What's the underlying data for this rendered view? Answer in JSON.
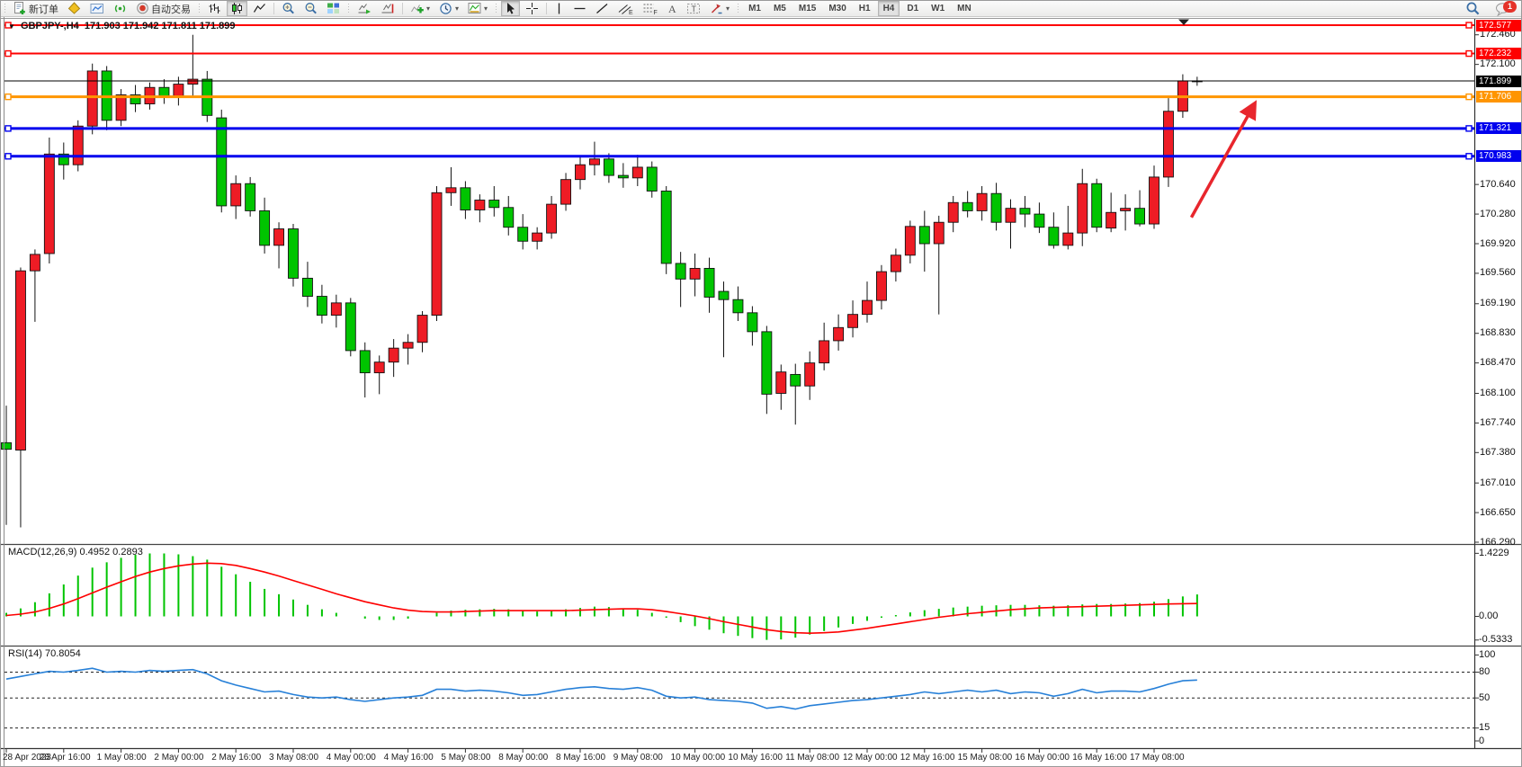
{
  "toolbar": {
    "new_order_label": "新订单",
    "autotrade_label": "自动交易",
    "timeframes": [
      "M1",
      "M5",
      "M15",
      "M30",
      "H1",
      "H4",
      "D1",
      "W1",
      "MN"
    ],
    "active_timeframe": "H4",
    "notification_badge": "1"
  },
  "chart": {
    "symbol_period": "GBPJPY-,H4",
    "ohlc_text": "171.903 171.942 171.811 171.899"
  },
  "price_axis": {
    "ticks": [
      "172.460",
      "172.100",
      "170.640",
      "170.280",
      "169.920",
      "169.560",
      "169.190",
      "168.830",
      "168.470",
      "168.100",
      "167.740",
      "167.380",
      "167.010",
      "166.650",
      "166.290"
    ],
    "badges": [
      {
        "value": "172.577",
        "bg": "#FE0000"
      },
      {
        "value": "172.232",
        "bg": "#FE0000"
      },
      {
        "value": "171.899",
        "bg": "#000000"
      },
      {
        "value": "171.706",
        "bg": "#FF9500"
      },
      {
        "value": "171.321",
        "bg": "#0000EE"
      },
      {
        "value": "170.983",
        "bg": "#0000EE"
      }
    ]
  },
  "time_axis": {
    "labels": [
      "28 Apr 2023",
      "28 Apr 16:00",
      "1 May 08:00",
      "2 May 00:00",
      "2 May 16:00",
      "3 May 08:00",
      "4 May 00:00",
      "4 May 16:00",
      "5 May 08:00",
      "8 May 00:00",
      "8 May 16:00",
      "9 May 08:00",
      "10 May 00:00",
      "10 May 16:00",
      "11 May 08:00",
      "12 May 00:00",
      "12 May 16:00",
      "15 May 08:00",
      "16 May 00:00",
      "16 May 16:00",
      "17 May 08:00"
    ]
  },
  "macd_panel": {
    "label": "MACD(12,26,9) 0.4952 0.2893",
    "scale": [
      "1.4229",
      "0.00",
      "-0.5333"
    ]
  },
  "rsi_panel": {
    "label": "RSI(14) 70.8054",
    "scale": [
      "100",
      "80",
      "50",
      "15",
      "0"
    ]
  },
  "chart_data": [
    {
      "type": "candlestick",
      "title": "GBPJPY-,H4",
      "timeframe": "H4",
      "up_color": "#EE1C25",
      "down_color": "#00C400",
      "ylim": [
        166.29,
        172.69
      ],
      "candles": [
        [
          167.5,
          167.95,
          166.5,
          167.42
        ],
        [
          167.41,
          169.63,
          166.47,
          169.59
        ],
        [
          169.59,
          169.85,
          168.97,
          169.79
        ],
        [
          169.8,
          171.21,
          169.68,
          171.01
        ],
        [
          171.01,
          171.15,
          170.7,
          170.88
        ],
        [
          170.88,
          171.42,
          170.8,
          171.35
        ],
        [
          171.35,
          172.11,
          171.25,
          172.02
        ],
        [
          172.02,
          172.08,
          171.3,
          171.42
        ],
        [
          171.42,
          171.8,
          171.35,
          171.73
        ],
        [
          171.73,
          171.85,
          171.52,
          171.62
        ],
        [
          171.62,
          171.88,
          171.55,
          171.82
        ],
        [
          171.82,
          171.92,
          171.62,
          171.7
        ],
        [
          171.7,
          171.95,
          171.6,
          171.86
        ],
        [
          171.86,
          172.46,
          171.72,
          171.92
        ],
        [
          171.92,
          172.02,
          171.4,
          171.48
        ],
        [
          171.45,
          171.55,
          170.3,
          170.38
        ],
        [
          170.38,
          170.75,
          170.22,
          170.65
        ],
        [
          170.65,
          170.73,
          170.25,
          170.32
        ],
        [
          170.32,
          170.48,
          169.8,
          169.9
        ],
        [
          169.9,
          170.18,
          169.62,
          170.1
        ],
        [
          170.1,
          170.16,
          169.4,
          169.5
        ],
        [
          169.5,
          169.7,
          169.15,
          169.28
        ],
        [
          169.28,
          169.42,
          168.95,
          169.05
        ],
        [
          169.05,
          169.3,
          168.9,
          169.2
        ],
        [
          169.2,
          169.26,
          168.55,
          168.62
        ],
        [
          168.62,
          168.72,
          168.05,
          168.35
        ],
        [
          168.35,
          168.56,
          168.09,
          168.48
        ],
        [
          168.48,
          168.76,
          168.3,
          168.65
        ],
        [
          168.65,
          168.82,
          168.45,
          168.72
        ],
        [
          168.72,
          169.1,
          168.6,
          169.05
        ],
        [
          169.05,
          170.62,
          168.98,
          170.54
        ],
        [
          170.54,
          170.85,
          170.38,
          170.6
        ],
        [
          170.6,
          170.68,
          170.22,
          170.33
        ],
        [
          170.33,
          170.52,
          170.18,
          170.45
        ],
        [
          170.45,
          170.62,
          170.25,
          170.36
        ],
        [
          170.36,
          170.5,
          170.02,
          170.12
        ],
        [
          170.12,
          170.28,
          169.85,
          169.95
        ],
        [
          169.95,
          170.12,
          169.85,
          170.05
        ],
        [
          170.05,
          170.5,
          169.98,
          170.4
        ],
        [
          170.4,
          170.78,
          170.32,
          170.7
        ],
        [
          170.7,
          170.98,
          170.58,
          170.88
        ],
        [
          170.88,
          171.16,
          170.75,
          170.95
        ],
        [
          170.95,
          171.02,
          170.66,
          170.75
        ],
        [
          170.75,
          170.9,
          170.6,
          170.72
        ],
        [
          170.72,
          171.0,
          170.62,
          170.85
        ],
        [
          170.85,
          170.92,
          170.48,
          170.56
        ],
        [
          170.56,
          170.62,
          169.55,
          169.68
        ],
        [
          169.68,
          169.82,
          169.15,
          169.49
        ],
        [
          169.49,
          169.8,
          169.28,
          169.62
        ],
        [
          169.62,
          169.75,
          169.08,
          169.27
        ],
        [
          169.34,
          169.46,
          168.54,
          169.24
        ],
        [
          169.24,
          169.4,
          168.98,
          169.08
        ],
        [
          169.08,
          169.16,
          168.68,
          168.85
        ],
        [
          168.85,
          168.92,
          167.85,
          168.09
        ],
        [
          168.1,
          168.45,
          167.9,
          168.36
        ],
        [
          168.33,
          168.46,
          167.72,
          168.19
        ],
        [
          168.19,
          168.61,
          168.02,
          168.47
        ],
        [
          168.47,
          168.96,
          168.38,
          168.74
        ],
        [
          168.74,
          169.06,
          168.62,
          168.9
        ],
        [
          168.9,
          169.23,
          168.78,
          169.06
        ],
        [
          169.06,
          169.46,
          168.96,
          169.23
        ],
        [
          169.23,
          169.66,
          169.12,
          169.58
        ],
        [
          169.58,
          169.86,
          169.46,
          169.78
        ],
        [
          169.78,
          170.2,
          169.68,
          170.13
        ],
        [
          170.13,
          170.32,
          169.58,
          169.92
        ],
        [
          169.92,
          170.26,
          169.06,
          170.18
        ],
        [
          170.18,
          170.5,
          170.06,
          170.42
        ],
        [
          170.42,
          170.56,
          170.24,
          170.32
        ],
        [
          170.32,
          170.62,
          170.2,
          170.53
        ],
        [
          170.53,
          170.66,
          170.08,
          170.18
        ],
        [
          170.18,
          170.46,
          169.86,
          170.35
        ],
        [
          170.35,
          170.5,
          170.12,
          170.28
        ],
        [
          170.28,
          170.42,
          170.05,
          170.12
        ],
        [
          170.12,
          170.3,
          169.86,
          169.9
        ],
        [
          169.9,
          170.38,
          169.85,
          170.05
        ],
        [
          170.05,
          170.83,
          169.89,
          170.65
        ],
        [
          170.65,
          170.71,
          170.06,
          170.12
        ],
        [
          170.11,
          170.54,
          170.06,
          170.3
        ],
        [
          170.32,
          170.52,
          170.08,
          170.35
        ],
        [
          170.35,
          170.57,
          170.13,
          170.16
        ],
        [
          170.16,
          170.87,
          170.1,
          170.73
        ],
        [
          170.73,
          171.69,
          170.61,
          171.53
        ],
        [
          171.53,
          171.98,
          171.45,
          171.9
        ],
        [
          171.9,
          171.95,
          171.84,
          171.9
        ]
      ],
      "hlines": [
        {
          "price": 172.577,
          "color": "#FE0000",
          "width": 2,
          "handles": true
        },
        {
          "price": 172.232,
          "color": "#FE0000",
          "width": 2,
          "handles": true
        },
        {
          "price": 171.899,
          "color": "#000000",
          "width": 1,
          "handles": false
        },
        {
          "price": 171.706,
          "color": "#FF9500",
          "width": 3,
          "handles": true
        },
        {
          "price": 171.321,
          "color": "#0000EE",
          "width": 3,
          "handles": true
        },
        {
          "price": 170.983,
          "color": "#0000EE",
          "width": 3,
          "handles": true
        }
      ],
      "current_price": 171.899,
      "trend_arrow": {
        "from_bar": 82.6,
        "from_price": 170.24,
        "to_bar": 87.0,
        "to_price": 171.62,
        "color": "#E8262D"
      }
    },
    {
      "type": "bar",
      "name": "MACD",
      "params": "12,26,9",
      "current_values": [
        0.4952,
        0.2893
      ],
      "ylim": [
        -0.5333,
        1.4229
      ],
      "bar_color": "#00C400",
      "signal_color": "#FE0000",
      "values": [
        0.08,
        0.18,
        0.32,
        0.52,
        0.72,
        0.92,
        1.1,
        1.22,
        1.32,
        1.39,
        1.42,
        1.42,
        1.4,
        1.36,
        1.28,
        1.12,
        0.95,
        0.78,
        0.62,
        0.5,
        0.38,
        0.26,
        0.16,
        0.08,
        0.0,
        -0.05,
        -0.08,
        -0.08,
        -0.05,
        0.0,
        0.08,
        0.13,
        0.15,
        0.16,
        0.17,
        0.16,
        0.13,
        0.11,
        0.13,
        0.16,
        0.19,
        0.22,
        0.21,
        0.18,
        0.15,
        0.08,
        -0.03,
        -0.13,
        -0.22,
        -0.3,
        -0.38,
        -0.44,
        -0.49,
        -0.53,
        -0.52,
        -0.48,
        -0.41,
        -0.33,
        -0.25,
        -0.17,
        -0.1,
        -0.03,
        0.03,
        0.09,
        0.14,
        0.17,
        0.2,
        0.22,
        0.24,
        0.25,
        0.26,
        0.26,
        0.25,
        0.24,
        0.25,
        0.27,
        0.28,
        0.28,
        0.29,
        0.3,
        0.33,
        0.39,
        0.45,
        0.4952
      ],
      "signal": [
        0.02,
        0.05,
        0.1,
        0.18,
        0.28,
        0.4,
        0.53,
        0.66,
        0.78,
        0.9,
        1.0,
        1.08,
        1.14,
        1.18,
        1.2,
        1.19,
        1.15,
        1.08,
        1.0,
        0.91,
        0.81,
        0.71,
        0.61,
        0.51,
        0.42,
        0.33,
        0.26,
        0.19,
        0.14,
        0.11,
        0.1,
        0.1,
        0.11,
        0.12,
        0.13,
        0.13,
        0.13,
        0.13,
        0.13,
        0.13,
        0.14,
        0.15,
        0.16,
        0.17,
        0.17,
        0.15,
        0.11,
        0.06,
        0.01,
        -0.05,
        -0.12,
        -0.18,
        -0.24,
        -0.3,
        -0.34,
        -0.37,
        -0.38,
        -0.37,
        -0.35,
        -0.31,
        -0.27,
        -0.22,
        -0.17,
        -0.12,
        -0.07,
        -0.02,
        0.02,
        0.06,
        0.09,
        0.12,
        0.15,
        0.17,
        0.19,
        0.2,
        0.21,
        0.22,
        0.23,
        0.24,
        0.25,
        0.26,
        0.27,
        0.28,
        0.285,
        0.2893
      ]
    },
    {
      "type": "line",
      "name": "RSI",
      "params": "14",
      "current_value": 70.8054,
      "ylim": [
        0,
        100
      ],
      "levels": [
        80,
        50,
        15
      ],
      "line_color": "#2780D8",
      "values": [
        72,
        75,
        78,
        81,
        80,
        82,
        84.5,
        80,
        81,
        80,
        82,
        81,
        82,
        83,
        78,
        70,
        65,
        61,
        57,
        58,
        54,
        51,
        50,
        51,
        48,
        46,
        48,
        50,
        51,
        53,
        60,
        60,
        58,
        59,
        58,
        56,
        53,
        54,
        57,
        60,
        62,
        63,
        61,
        60,
        62,
        59,
        52,
        50,
        51,
        48,
        47,
        46,
        44,
        38,
        40,
        37,
        41,
        43,
        45,
        47,
        48,
        50,
        52,
        54,
        57,
        55,
        57,
        59,
        57,
        59,
        55,
        57,
        56,
        52,
        55,
        60,
        56,
        58,
        58,
        57,
        61,
        66,
        70,
        70.8
      ]
    }
  ]
}
